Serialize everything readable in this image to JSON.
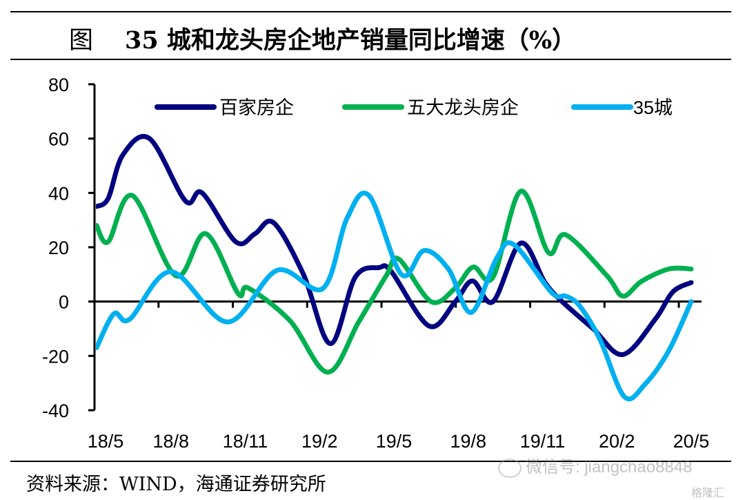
{
  "figure_label": "图",
  "title": "35 城和龙头房企地产销量同比增速（%）",
  "source": "资料来源：WIND，海通证券研究所",
  "watermark": "微信号: jiangchao8848",
  "logo_text": "格隆汇",
  "chart_data": {
    "type": "line",
    "title": "35 城和龙头房企地产销量同比增速（%）",
    "xlabel": "",
    "ylabel": "",
    "x_unit": "months since 18/5",
    "xlim": [
      0,
      24
    ],
    "ylim": [
      -40,
      80
    ],
    "yticks": [
      80,
      60,
      40,
      20,
      0,
      -20,
      -40
    ],
    "ytick_labels": [
      "80",
      "60",
      "40",
      "20",
      "0",
      "-20",
      "-40"
    ],
    "xtick_labels": [
      "18/5",
      "18/8",
      "18/11",
      "19/2",
      "19/5",
      "19/8",
      "19/11",
      "20/2",
      "20/5"
    ],
    "xtick_positions": [
      0,
      3,
      6,
      9,
      12,
      15,
      18,
      21,
      24
    ],
    "grid": false,
    "legend_position": "top",
    "series": [
      {
        "name": "百家房企",
        "color": "#000080",
        "x": [
          0,
          0.47,
          1.06,
          2.14,
          3.59,
          4.26,
          5.62,
          6.4,
          7.15,
          8.35,
          9.44,
          10.44,
          11.4,
          11.9,
          13.42,
          14.48,
          15.17,
          16.0,
          17.12,
          18.1,
          18.79,
          20.04,
          21.24,
          22.55,
          23.25,
          24
        ],
        "values": [
          35,
          38,
          54,
          60,
          37,
          40,
          22,
          25,
          29,
          10,
          -15.5,
          9,
          12.5,
          11,
          -9,
          0,
          7.6,
          0,
          21.5,
          7,
          0,
          -10,
          -19.5,
          -6.5,
          3.5,
          7
        ]
      },
      {
        "name": "五大龙头房企",
        "color": "#00B050",
        "x": [
          0,
          0.47,
          1.45,
          3.2,
          4.4,
          5.71,
          6.12,
          7.8,
          9.33,
          10.58,
          11.69,
          12.19,
          13.5,
          14.48,
          15.2,
          16.0,
          17.12,
          18.24,
          18.93,
          20.6,
          21.24,
          22.0,
          23.1,
          24
        ],
        "values": [
          28,
          22,
          39,
          9.5,
          25,
          3,
          5,
          -7,
          -26,
          -7.5,
          9.5,
          15.7,
          0,
          5,
          12.7,
          9,
          40.6,
          18,
          24.6,
          9.5,
          2,
          7.5,
          12,
          12
        ]
      },
      {
        "name": "35城",
        "color": "#00B0F0",
        "x": [
          0,
          0.7,
          1.34,
          3.0,
          5.29,
          7.29,
          9.13,
          10.1,
          11.0,
          12.3,
          13.22,
          14.2,
          15.12,
          16.15,
          16.84,
          18.37,
          18.93,
          19.49,
          20.32,
          21.3,
          22.13,
          23.1,
          24
        ],
        "values": [
          -17,
          -4.5,
          -6.5,
          11,
          -7.5,
          11.5,
          4.8,
          30.5,
          39,
          10,
          18.8,
          12,
          -4,
          16,
          21,
          3.3,
          2,
          -1.5,
          -14,
          -35,
          -30.5,
          -18,
          0
        ]
      }
    ]
  }
}
